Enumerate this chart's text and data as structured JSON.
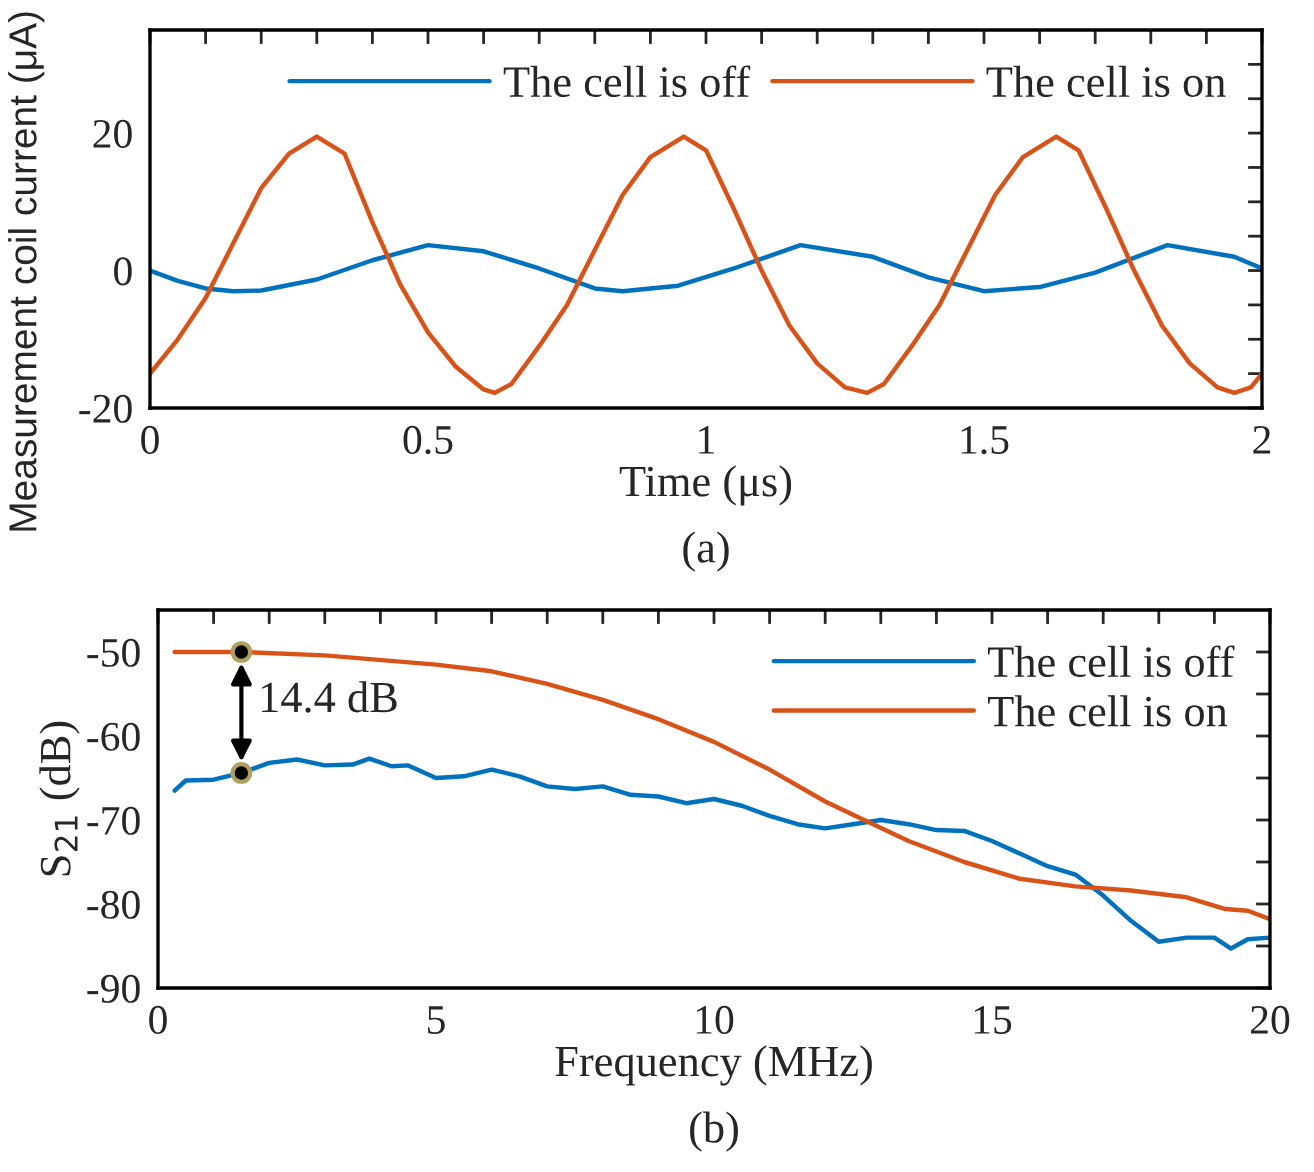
{
  "chart_data": [
    {
      "type": "line",
      "xlabel": "Time (μs)",
      "ylabel": "Measurement coil current (μA)",
      "annotations": [
        "(a)"
      ],
      "legend": "top",
      "grid": false,
      "xlim": [
        0,
        2
      ],
      "ylim": [
        -20,
        35
      ],
      "xticks": [
        0,
        {
          "value": 0.1,
          "label": null
        },
        {
          "value": 0.2,
          "label": null
        },
        {
          "value": 0.3,
          "label": null
        },
        {
          "value": 0.4,
          "label": null
        },
        0.5,
        {
          "value": 0.6,
          "label": null
        },
        {
          "value": 0.7,
          "label": null
        },
        {
          "value": 0.8,
          "label": null
        },
        {
          "value": 0.9,
          "label": null
        },
        1,
        {
          "value": 1.1,
          "label": null
        },
        {
          "value": 1.2,
          "label": null
        },
        {
          "value": 1.3,
          "label": null
        },
        {
          "value": 1.4,
          "label": null
        },
        1.5,
        {
          "value": 1.6,
          "label": null
        },
        {
          "value": 1.7,
          "label": null
        },
        {
          "value": 1.8,
          "label": null
        },
        {
          "value": 1.9,
          "label": null
        },
        2
      ],
      "yticks": [
        -20,
        {
          "value": -15,
          "label": null
        },
        {
          "value": -10,
          "label": null
        },
        {
          "value": -5,
          "label": null
        },
        0,
        {
          "value": 5,
          "label": null
        },
        {
          "value": 10,
          "label": null
        },
        {
          "value": 15,
          "label": null
        },
        20,
        {
          "value": 25,
          "label": null
        },
        {
          "value": 30,
          "label": null
        }
      ],
      "series": [
        {
          "name": "The cell is off",
          "color": "#0072bd",
          "x": [
            0,
            0.05,
            0.1,
            0.15,
            0.2,
            0.3,
            0.4,
            0.5,
            0.6,
            0.7,
            0.8,
            0.85,
            0.95,
            1.05,
            1.17,
            1.3,
            1.4,
            1.5,
            1.6,
            1.7,
            1.83,
            1.95,
            2.0
          ],
          "values": [
            0,
            -1.5,
            -2.6,
            -3,
            -2.9,
            -1.3,
            1.5,
            3.7,
            2.8,
            0.3,
            -2.6,
            -3,
            -2.2,
            0.3,
            3.7,
            2,
            -1,
            -3,
            -2.4,
            -0.3,
            3.7,
            2,
            0.3
          ]
        },
        {
          "name": "The cell is on",
          "color": "#d95319",
          "x": [
            0,
            0.05,
            0.1,
            0.15,
            0.2,
            0.25,
            0.3,
            0.35,
            0.4,
            0.45,
            0.5,
            0.55,
            0.6,
            0.62,
            0.65,
            0.7,
            0.75,
            0.8,
            0.85,
            0.9,
            0.96,
            1.0,
            1.05,
            1.1,
            1.15,
            1.2,
            1.25,
            1.29,
            1.32,
            1.37,
            1.42,
            1.47,
            1.52,
            1.57,
            1.63,
            1.67,
            1.72,
            1.77,
            1.82,
            1.87,
            1.92,
            1.95,
            1.98,
            2.0
          ],
          "values": [
            -15,
            -10,
            -4,
            4,
            12,
            17,
            19.5,
            17,
            7,
            -2,
            -9,
            -14,
            -17.3,
            -17.8,
            -16.5,
            -11,
            -5,
            3,
            11,
            16.5,
            19.5,
            17.5,
            9,
            0,
            -8,
            -13.5,
            -17,
            -17.8,
            -16.5,
            -11,
            -5,
            3,
            11,
            16.5,
            19.5,
            17.5,
            9,
            0,
            -8,
            -13.5,
            -17,
            -17.8,
            -17,
            -15
          ]
        }
      ]
    },
    {
      "type": "line",
      "xlabel": "Frequency (MHz)",
      "ylabel": "S$_{21}$ (dB)",
      "annotations": [
        "14.4 dB",
        "(b)"
      ],
      "legend": "top right",
      "grid": false,
      "xlim": [
        0,
        20
      ],
      "ylim": [
        -90,
        -45
      ],
      "xticks": [
        0,
        {
          "value": 1,
          "label": null
        },
        {
          "value": 2,
          "label": null
        },
        {
          "value": 3,
          "label": null
        },
        {
          "value": 4,
          "label": null
        },
        5,
        {
          "value": 6,
          "label": null
        },
        {
          "value": 7,
          "label": null
        },
        {
          "value": 8,
          "label": null
        },
        {
          "value": 9,
          "label": null
        },
        10,
        {
          "value": 11,
          "label": null
        },
        {
          "value": 12,
          "label": null
        },
        {
          "value": 13,
          "label": null
        },
        {
          "value": 14,
          "label": null
        },
        15,
        {
          "value": 16,
          "label": null
        },
        {
          "value": 17,
          "label": null
        },
        {
          "value": 18,
          "label": null
        },
        {
          "value": 19,
          "label": null
        },
        20
      ],
      "yticks": [
        -90,
        {
          "value": -85,
          "label": null
        },
        -80,
        {
          "value": -75,
          "label": null
        },
        -70,
        {
          "value": -65,
          "label": null
        },
        -60,
        {
          "value": -55,
          "label": null
        },
        -50
      ],
      "series": [
        {
          "name": "The cell is off",
          "color": "#0072bd",
          "x": [
            0.3,
            0.5,
            1,
            1.5,
            2,
            2.5,
            3,
            3.5,
            3.8,
            4.2,
            4.5,
            5,
            5.5,
            6,
            6.5,
            7,
            7.5,
            8,
            8.5,
            9,
            9.5,
            10,
            10.5,
            11,
            11.5,
            12,
            12.5,
            13,
            13.5,
            14,
            14.5,
            15,
            15.5,
            16,
            16.5,
            17,
            17.5,
            18,
            18.5,
            19,
            19.3,
            19.6,
            20
          ],
          "values": [
            -66.5,
            -65.3,
            -65.2,
            -64.4,
            -63.2,
            -62.8,
            -63.5,
            -63.4,
            -62.7,
            -63.6,
            -63.5,
            -65,
            -64.8,
            -64,
            -64.8,
            -66,
            -66.3,
            -66,
            -67,
            -67.2,
            -68,
            -67.5,
            -68.3,
            -69.5,
            -70.5,
            -71,
            -70.5,
            -70,
            -70.5,
            -71.2,
            -71.3,
            -72.5,
            -74,
            -75.5,
            -76.5,
            -79,
            -82,
            -84.5,
            -84,
            -84,
            -85.3,
            -84.2,
            -84
          ]
        },
        {
          "name": "The cell is on",
          "color": "#d95319",
          "x": [
            0.3,
            1.5,
            3,
            5,
            6,
            7,
            8,
            9,
            10,
            11,
            12,
            12.7,
            13.5,
            14.5,
            15.5,
            16.5,
            17.5,
            18.5,
            19.2,
            19.6,
            20
          ],
          "values": [
            -50,
            -50,
            -50.4,
            -51.5,
            -52.3,
            -53.8,
            -55.7,
            -58,
            -60.7,
            -64,
            -67.8,
            -70,
            -72.5,
            -75,
            -77,
            -77.9,
            -78.4,
            -79.2,
            -80.6,
            -80.8,
            -81.8
          ]
        },
        {
          "type": "scatter",
          "color": "#000000",
          "marker": "circle",
          "x": [
            1.5,
            1.5
          ],
          "values": [
            -50,
            -64.4
          ]
        }
      ]
    }
  ]
}
